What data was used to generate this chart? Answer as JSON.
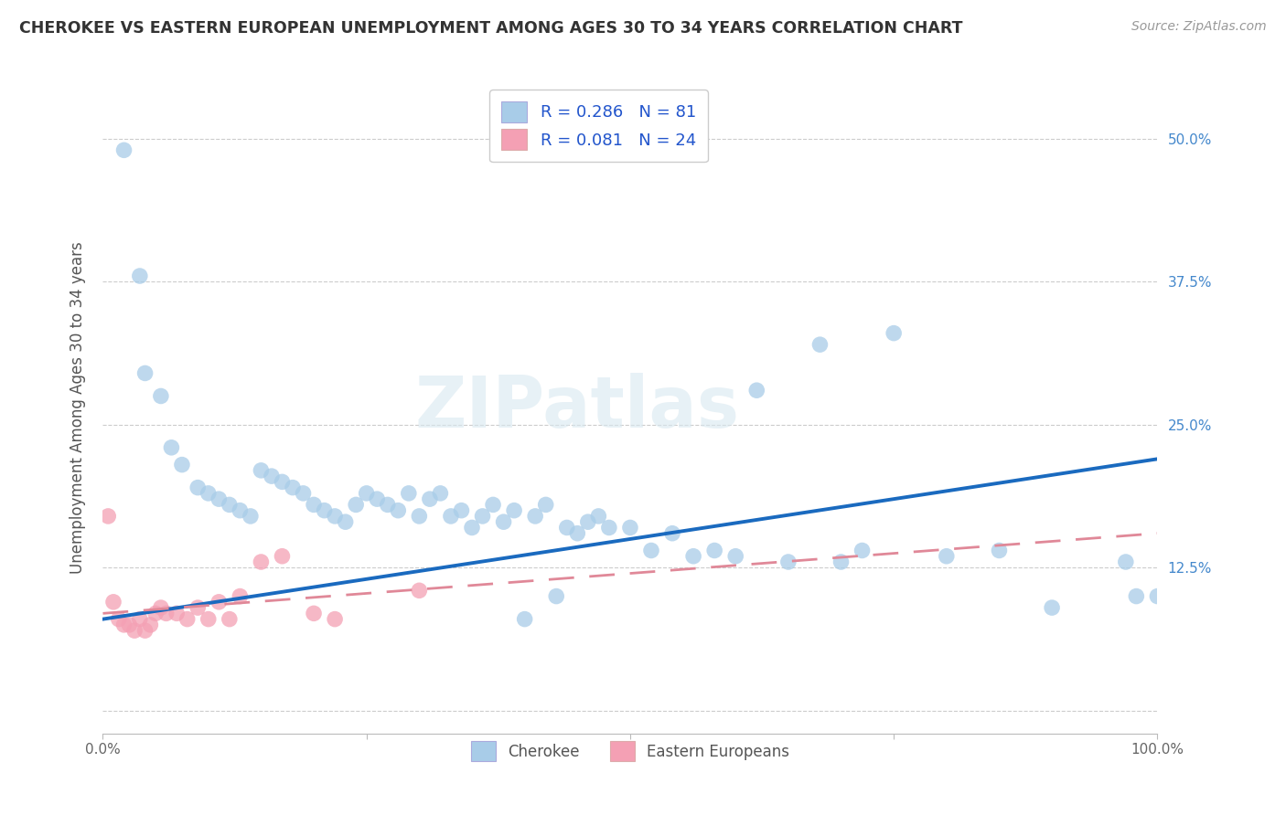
{
  "title": "CHEROKEE VS EASTERN EUROPEAN UNEMPLOYMENT AMONG AGES 30 TO 34 YEARS CORRELATION CHART",
  "source": "Source: ZipAtlas.com",
  "ylabel": "Unemployment Among Ages 30 to 34 years",
  "xlim": [
    0,
    100
  ],
  "ylim": [
    -2,
    55
  ],
  "yticks": [
    0,
    12.5,
    25,
    37.5,
    50
  ],
  "yticklabels_right": [
    "",
    "12.5%",
    "25.0%",
    "37.5%",
    "50.0%"
  ],
  "xticks": [
    0,
    25,
    50,
    75,
    100
  ],
  "xticklabels": [
    "0.0%",
    "",
    "",
    "",
    "100.0%"
  ],
  "cherokee_color": "#a8cce8",
  "eastern_color": "#f4a0b4",
  "trend_cherokee_color": "#1a6abf",
  "trend_eastern_color": "#e08898",
  "watermark": "ZIPatlas",
  "cherokee_x": [
    2.0,
    3.5,
    4.0,
    5.5,
    6.5,
    7.5,
    9.0,
    10.0,
    11.0,
    12.0,
    13.0,
    14.0,
    15.0,
    16.0,
    17.0,
    18.0,
    19.0,
    20.0,
    21.0,
    22.0,
    23.0,
    24.0,
    25.0,
    26.0,
    27.0,
    28.0,
    29.0,
    30.0,
    31.0,
    32.0,
    33.0,
    34.0,
    35.0,
    36.0,
    37.0,
    38.0,
    39.0,
    40.0,
    41.0,
    42.0,
    43.0,
    44.0,
    45.0,
    46.0,
    47.0,
    48.0,
    50.0,
    52.0,
    54.0,
    56.0,
    58.0,
    60.0,
    62.0,
    65.0,
    68.0,
    70.0,
    72.0,
    75.0,
    80.0,
    85.0,
    90.0,
    97.0,
    98.0,
    100.0
  ],
  "cherokee_y": [
    49.0,
    38.0,
    29.5,
    27.5,
    23.0,
    21.5,
    19.5,
    19.0,
    18.5,
    18.0,
    17.5,
    17.0,
    21.0,
    20.5,
    20.0,
    19.5,
    19.0,
    18.0,
    17.5,
    17.0,
    16.5,
    18.0,
    19.0,
    18.5,
    18.0,
    17.5,
    19.0,
    17.0,
    18.5,
    19.0,
    17.0,
    17.5,
    16.0,
    17.0,
    18.0,
    16.5,
    17.5,
    8.0,
    17.0,
    18.0,
    10.0,
    16.0,
    15.5,
    16.5,
    17.0,
    16.0,
    16.0,
    14.0,
    15.5,
    13.5,
    14.0,
    13.5,
    28.0,
    13.0,
    32.0,
    13.0,
    14.0,
    33.0,
    13.5,
    14.0,
    9.0,
    13.0,
    10.0,
    10.0
  ],
  "eastern_x": [
    0.5,
    1.0,
    1.5,
    2.0,
    2.5,
    3.0,
    3.5,
    4.0,
    4.5,
    5.0,
    5.5,
    6.0,
    7.0,
    8.0,
    9.0,
    10.0,
    11.0,
    12.0,
    13.0,
    15.0,
    17.0,
    20.0,
    22.0,
    30.0
  ],
  "eastern_y": [
    17.0,
    9.5,
    8.0,
    7.5,
    7.5,
    7.0,
    8.0,
    7.0,
    7.5,
    8.5,
    9.0,
    8.5,
    8.5,
    8.0,
    9.0,
    8.0,
    9.5,
    8.0,
    10.0,
    13.0,
    13.5,
    8.5,
    8.0,
    10.5
  ],
  "trend_cherokee_x0": 0,
  "trend_cherokee_y0": 8.0,
  "trend_cherokee_x1": 100,
  "trend_cherokee_y1": 22.0,
  "trend_eastern_x0": 0,
  "trend_eastern_y0": 8.5,
  "trend_eastern_x1": 100,
  "trend_eastern_y1": 15.5
}
